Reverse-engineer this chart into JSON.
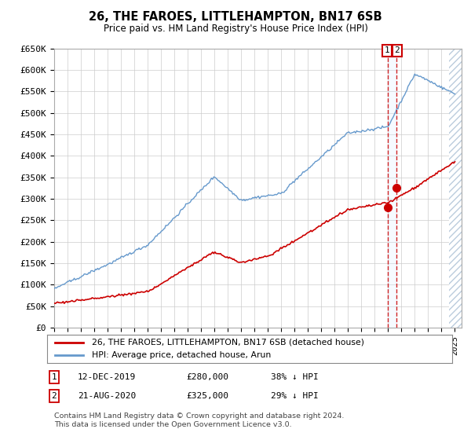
{
  "title": "26, THE FAROES, LITTLEHAMPTON, BN17 6SB",
  "subtitle": "Price paid vs. HM Land Registry's House Price Index (HPI)",
  "ylim": [
    0,
    650000
  ],
  "yticks": [
    0,
    50000,
    100000,
    150000,
    200000,
    250000,
    300000,
    350000,
    400000,
    450000,
    500000,
    550000,
    600000,
    650000
  ],
  "ytick_labels": [
    "£0",
    "£50K",
    "£100K",
    "£150K",
    "£200K",
    "£250K",
    "£300K",
    "£350K",
    "£400K",
    "£450K",
    "£500K",
    "£550K",
    "£600K",
    "£650K"
  ],
  "xlim_start": 1995.0,
  "xlim_end": 2025.5,
  "red_color": "#cc0000",
  "blue_color": "#6699cc",
  "blue_fill_color": "#ddeeff",
  "hatch_color": "#bbccdd",
  "grid_color": "#cccccc",
  "background_color": "#ffffff",
  "legend_label_red": "26, THE FAROES, LITTLEHAMPTON, BN17 6SB (detached house)",
  "legend_label_blue": "HPI: Average price, detached house, Arun",
  "transaction1_date": "12-DEC-2019",
  "transaction1_price": 280000,
  "transaction1_pct": "38%",
  "transaction1_year": 2019.95,
  "transaction2_date": "21-AUG-2020",
  "transaction2_price": 325000,
  "transaction2_pct": "29%",
  "transaction2_year": 2020.63,
  "footer": "Contains HM Land Registry data © Crown copyright and database right 2024.\nThis data is licensed under the Open Government Licence v3.0."
}
